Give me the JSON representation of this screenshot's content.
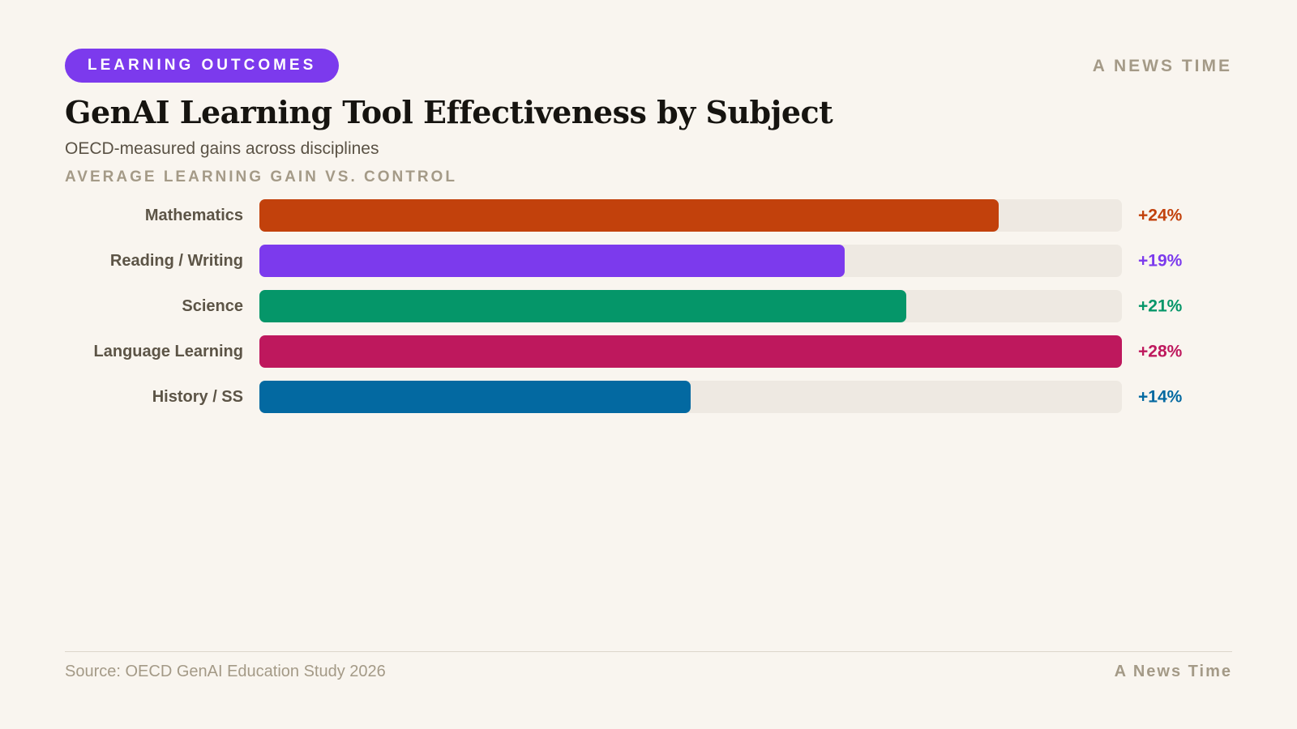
{
  "header": {
    "tag_label": "LEARNING OUTCOMES",
    "brand": "A NEWS TIME",
    "title": "GenAI Learning Tool Effectiveness by Subject",
    "subtitle": "OECD-measured gains across disciplines",
    "axis_caption": "AVERAGE LEARNING GAIN VS. CONTROL"
  },
  "footer": {
    "source": "Source: OECD GenAI Education Study 2026",
    "brand": "A News Time"
  },
  "colors": {
    "background": "#f9f5ef",
    "tag_background": "#7c3aed",
    "track": "#eee9e2",
    "category_label": "#5c5446"
  },
  "chart_data": {
    "type": "bar",
    "orientation": "horizontal",
    "title": "GenAI Learning Tool Effectiveness by Subject",
    "subtitle": "OECD-measured gains across disciplines",
    "xlabel": "AVERAGE LEARNING GAIN VS. CONTROL",
    "unit": "%",
    "xlim": [
      0,
      28
    ],
    "grid": false,
    "categories": [
      "Mathematics",
      "Reading / Writing",
      "Science",
      "Language Learning",
      "History / SS"
    ],
    "values": [
      24,
      19,
      21,
      28,
      14
    ],
    "value_labels": [
      "+24%",
      "+19%",
      "+21%",
      "+28%",
      "+14%"
    ],
    "colors": [
      "#c2410c",
      "#7c3aed",
      "#059669",
      "#be185d",
      "#0369a1"
    ]
  }
}
